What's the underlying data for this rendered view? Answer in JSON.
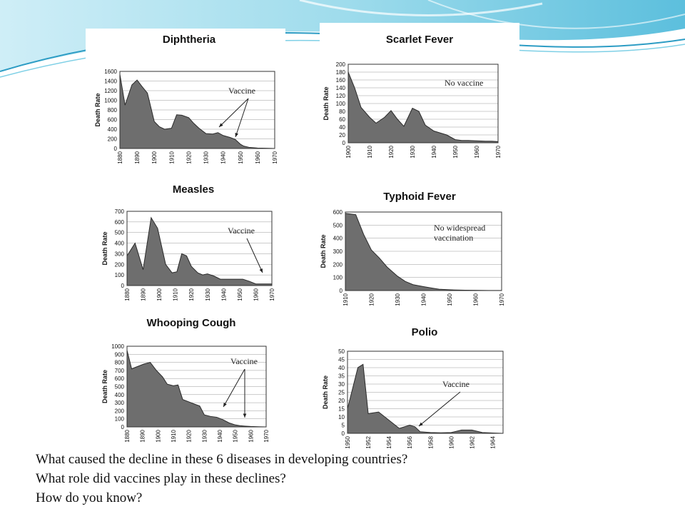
{
  "slide": {
    "questions": [
      "What caused the decline in these 6 diseases in developing countries?",
      "What role did vaccines play in these declines?",
      "How do you know?"
    ],
    "colors": {
      "banner_light": "#bfe8f3",
      "banner_mid": "#7fd0e6",
      "banner_dark": "#3aa7c9",
      "area_fill": "#6e6e6e"
    }
  },
  "chart_data": [
    {
      "type": "area",
      "title": "Diphtheria",
      "ylabel": "Death Rate",
      "xlabel": "",
      "x_ticks": [
        "1880",
        "1890",
        "1900",
        "1910",
        "1920",
        "1930",
        "1940",
        "1950",
        "1960",
        "1970"
      ],
      "y_ticks": [
        "0",
        "200",
        "400",
        "600",
        "800",
        "1000",
        "1200",
        "1400",
        "1600"
      ],
      "xlim": [
        1880,
        1970
      ],
      "ylim": [
        0,
        1600
      ],
      "x": [
        1880,
        1883,
        1887,
        1890,
        1893,
        1896,
        1900,
        1903,
        1906,
        1910,
        1913,
        1916,
        1920,
        1923,
        1926,
        1930,
        1934,
        1937,
        1940,
        1944,
        1947,
        1950,
        1952,
        1955,
        1960,
        1965,
        1970
      ],
      "y": [
        1540,
        900,
        1320,
        1420,
        1280,
        1150,
        560,
        450,
        400,
        420,
        700,
        690,
        640,
        520,
        420,
        310,
        300,
        330,
        270,
        230,
        190,
        90,
        50,
        25,
        10,
        5,
        0
      ],
      "annotation": "Vaccine",
      "grid": true
    },
    {
      "type": "area",
      "title": "Scarlet Fever",
      "ylabel": "Death Rate",
      "xlabel": "",
      "x_ticks": [
        "1900",
        "1910",
        "1920",
        "1930",
        "1940",
        "1950",
        "1960",
        "1970"
      ],
      "y_ticks": [
        "0",
        "20",
        "40",
        "60",
        "80",
        "100",
        "120",
        "140",
        "160",
        "180",
        "200"
      ],
      "xlim": [
        1900,
        1970
      ],
      "ylim": [
        0,
        200
      ],
      "x": [
        1900,
        1903,
        1906,
        1910,
        1913,
        1917,
        1920,
        1923,
        1926,
        1930,
        1933,
        1936,
        1940,
        1943,
        1946,
        1950,
        1953,
        1956,
        1960,
        1964,
        1967,
        1970
      ],
      "y": [
        180,
        140,
        90,
        65,
        50,
        65,
        82,
        60,
        42,
        88,
        80,
        45,
        30,
        25,
        20,
        8,
        6,
        6,
        5,
        4,
        4,
        3
      ],
      "annotation": "No vaccine",
      "grid": true
    },
    {
      "type": "area",
      "title": "Measles",
      "ylabel": "Death Rate",
      "xlabel": "",
      "x_ticks": [
        "1880",
        "1890",
        "1900",
        "1910",
        "1920",
        "1930",
        "1940",
        "1950",
        "1960",
        "1970"
      ],
      "y_ticks": [
        "0",
        "100",
        "200",
        "300",
        "400",
        "500",
        "600",
        "700"
      ],
      "xlim": [
        1880,
        1970
      ],
      "ylim": [
        0,
        700
      ],
      "x": [
        1880,
        1885,
        1890,
        1895,
        1899,
        1904,
        1908,
        1911,
        1914,
        1917,
        1920,
        1924,
        1927,
        1930,
        1934,
        1938,
        1940,
        1944,
        1948,
        1952,
        1956,
        1960,
        1965,
        1970
      ],
      "y": [
        280,
        400,
        150,
        640,
        540,
        200,
        120,
        130,
        300,
        280,
        180,
        120,
        100,
        110,
        90,
        60,
        60,
        60,
        60,
        60,
        40,
        15,
        15,
        15
      ],
      "annotation": "Vaccine",
      "grid": true
    },
    {
      "type": "area",
      "title": "Typhoid Fever",
      "ylabel": "Death Rate",
      "xlabel": "",
      "x_ticks": [
        "1910",
        "1920",
        "1930",
        "1940",
        "1950",
        "1960",
        "1970"
      ],
      "y_ticks": [
        "0",
        "100",
        "200",
        "300",
        "400",
        "500",
        "600"
      ],
      "xlim": [
        1910,
        1970
      ],
      "ylim": [
        0,
        600
      ],
      "x": [
        1910,
        1912,
        1914,
        1917,
        1920,
        1923,
        1926,
        1930,
        1933,
        1936,
        1940,
        1943,
        1946,
        1950,
        1953,
        1956,
        1960,
        1965,
        1970
      ],
      "y": [
        590,
        585,
        580,
        430,
        310,
        250,
        180,
        110,
        70,
        45,
        30,
        20,
        10,
        6,
        4,
        3,
        2,
        1,
        1
      ],
      "annotation": "No widespread vaccination",
      "grid": true
    },
    {
      "type": "area",
      "title": "Whooping Cough",
      "ylabel": "Death Rate",
      "xlabel": "",
      "x_ticks": [
        "1880",
        "1890",
        "1900",
        "1910",
        "1920",
        "1930",
        "1940",
        "1950",
        "1960",
        "1970"
      ],
      "y_ticks": [
        "0",
        "100",
        "200",
        "300",
        "400",
        "500",
        "600",
        "700",
        "800",
        "900",
        "1000"
      ],
      "xlim": [
        1880,
        1970
      ],
      "ylim": [
        0,
        1000
      ],
      "x": [
        1880,
        1883,
        1887,
        1891,
        1895,
        1899,
        1903,
        1906,
        1910,
        1913,
        1916,
        1920,
        1924,
        1927,
        1930,
        1934,
        1938,
        1942,
        1946,
        1950,
        1953,
        1956,
        1960,
        1965,
        1970
      ],
      "y": [
        950,
        720,
        750,
        780,
        800,
        700,
        620,
        530,
        510,
        520,
        340,
        310,
        280,
        260,
        150,
        130,
        120,
        90,
        50,
        25,
        15,
        10,
        5,
        2,
        0
      ],
      "annotation": "Vaccine",
      "grid": true
    },
    {
      "type": "area",
      "title": "Polio",
      "ylabel": "Death Rate",
      "xlabel": "",
      "x_ticks": [
        "1950",
        "1952",
        "1954",
        "1956",
        "1958",
        "1960",
        "1962",
        "1964"
      ],
      "y_ticks": [
        "0",
        "5",
        "10",
        "15",
        "20",
        "25",
        "30",
        "35",
        "40",
        "45",
        "50"
      ],
      "xlim": [
        1950,
        1965
      ],
      "ylim": [
        0,
        50
      ],
      "x": [
        1950,
        1951,
        1951.5,
        1952,
        1953,
        1954,
        1955,
        1956,
        1956.5,
        1957,
        1958,
        1959,
        1960,
        1961,
        1962,
        1963,
        1964,
        1965
      ],
      "y": [
        15,
        40,
        42,
        12,
        13,
        8,
        3,
        5,
        4,
        1,
        0.5,
        0.3,
        0.5,
        2,
        2,
        0.5,
        0.2,
        0
      ],
      "annotation": "Vaccine",
      "grid": true
    }
  ]
}
